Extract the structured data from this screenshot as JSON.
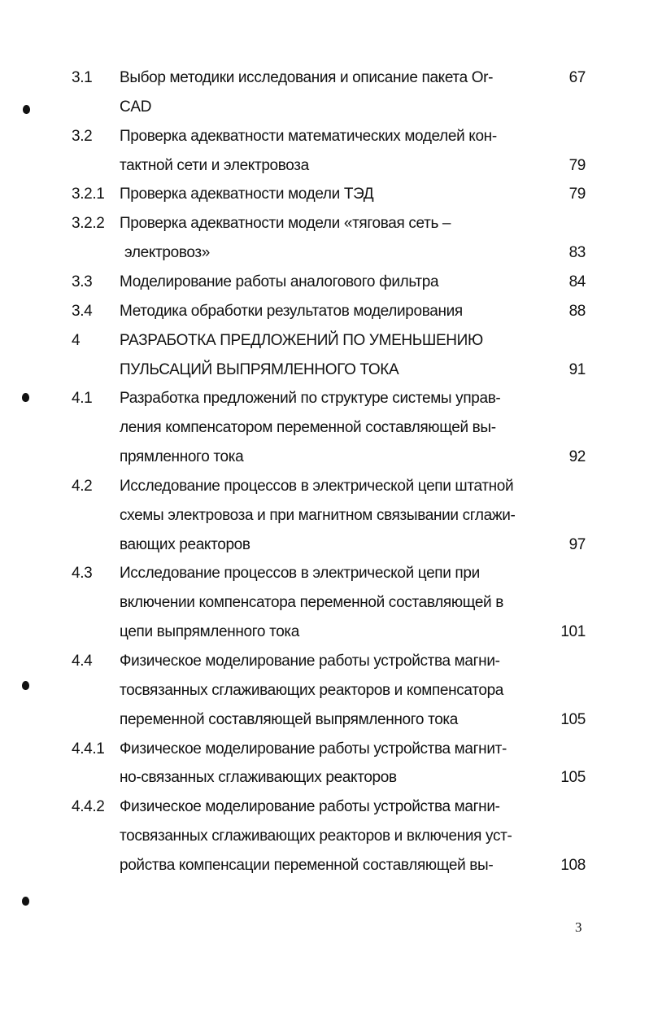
{
  "toc": [
    {
      "number": "3.1",
      "lines": [
        "Выбор методики исследования и описание пакета Or-",
        "CAD"
      ],
      "page": "67",
      "page_line": 0
    },
    {
      "number": "3.2",
      "lines": [
        "Проверка адекватности математических моделей кон-",
        "тактной сети и электровоза"
      ],
      "page": "79",
      "page_line": 1
    },
    {
      "number": "3.2.1",
      "lines": [
        "Проверка адекватности модели ТЭД"
      ],
      "page": "79",
      "page_line": 0
    },
    {
      "number": "3.2.2",
      "lines": [
        "Проверка адекватности модели «тяговая сеть –",
        "электровоз»"
      ],
      "page": "83",
      "page_line": 1,
      "indent_last": true
    },
    {
      "number": "3.3",
      "lines": [
        "Моделирование работы аналогового фильтра"
      ],
      "page": "84",
      "page_line": 0
    },
    {
      "number": "3.4",
      "lines": [
        "Методика обработки результатов моделирования"
      ],
      "page": "88",
      "page_line": 0
    },
    {
      "number": "4",
      "lines": [
        "РАЗРАБОТКА ПРЕДЛОЖЕНИЙ ПО УМЕНЬШЕНИЮ",
        "ПУЛЬСАЦИЙ ВЫПРЯМЛЕННОГО ТОКА"
      ],
      "page": "91",
      "page_line": 1
    },
    {
      "number": "4.1",
      "lines": [
        "Разработка предложений по структуре системы управ-",
        "ления компенсатором переменной составляющей вы-",
        "прямленного тока"
      ],
      "page": "92",
      "page_line": 2
    },
    {
      "number": "4.2",
      "lines": [
        "Исследование процессов в электрической цепи штатной",
        "схемы электровоза и при магнитном связывании сглажи-",
        "вающих реакторов"
      ],
      "page": "97",
      "page_line": 2
    },
    {
      "number": "4.3",
      "lines": [
        "Исследование процессов в электрической цепи при",
        "включении компенсатора переменной составляющей в",
        "цепи выпрямленного тока"
      ],
      "page": "101",
      "page_line": 2
    },
    {
      "number": "4.4",
      "lines": [
        "Физическое моделирование работы устройства магни-",
        "тосвязанных сглаживающих реакторов и компенсатора",
        "переменной составляющей выпрямленного тока"
      ],
      "page": "105",
      "page_line": 2
    },
    {
      "number": "4.4.1",
      "lines": [
        "Физическое  моделирование  работы  устройства  магнит-",
        "но-связанных сглаживающих реакторов"
      ],
      "page": "105",
      "page_line": 1
    },
    {
      "number": "4.4.2",
      "lines": [
        "Физическое моделирование работы устройства магни-",
        "тосвязанных сглаживающих реакторов и включения уст-",
        "ройства компенсации переменной составляющей вы-"
      ],
      "page": "108",
      "page_line": 2
    }
  ],
  "page_number": "3"
}
